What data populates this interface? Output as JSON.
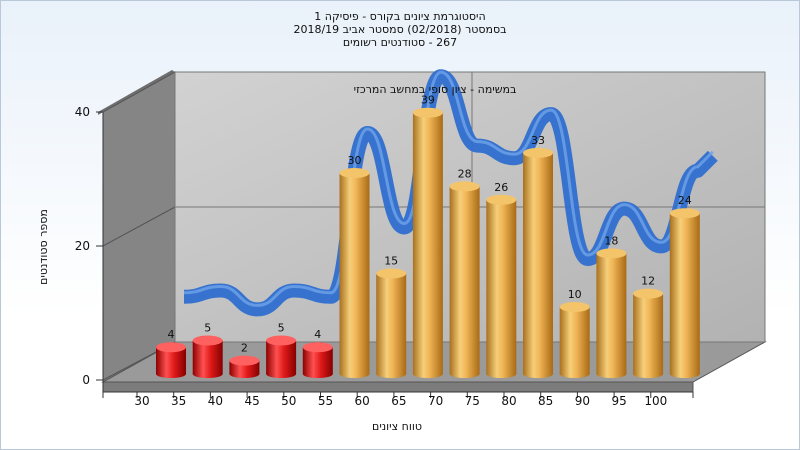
{
  "chart_data": {
    "type": "bar",
    "title_lines": [
      "היסטוגרמת ציונים בקורס - פיסיקה 1",
      "בסמסטר  (02/2018)  סמסטר אביב 2018/19",
      "267 - סטודנטים רשומים"
    ],
    "xlabel": "טווח ציונים",
    "ylabel": "מספר סטודנטים",
    "ylim": [
      0,
      40
    ],
    "y_ticks": [
      0,
      20,
      40
    ],
    "categories": [
      "30",
      "35",
      "40",
      "45",
      "50",
      "55",
      "60",
      "65",
      "70",
      "75",
      "80",
      "85",
      "90",
      "95",
      "100"
    ],
    "values": [
      4,
      5,
      2,
      5,
      4,
      30,
      15,
      39,
      28,
      26,
      33,
      10,
      18,
      12,
      24
    ],
    "fail_color": "#d81818",
    "pass_color": "#e0a040",
    "curve_color": "#2f6fcf",
    "curve_label": "במשימה - ציון סופי במחשב המרכזי",
    "grid": true
  }
}
